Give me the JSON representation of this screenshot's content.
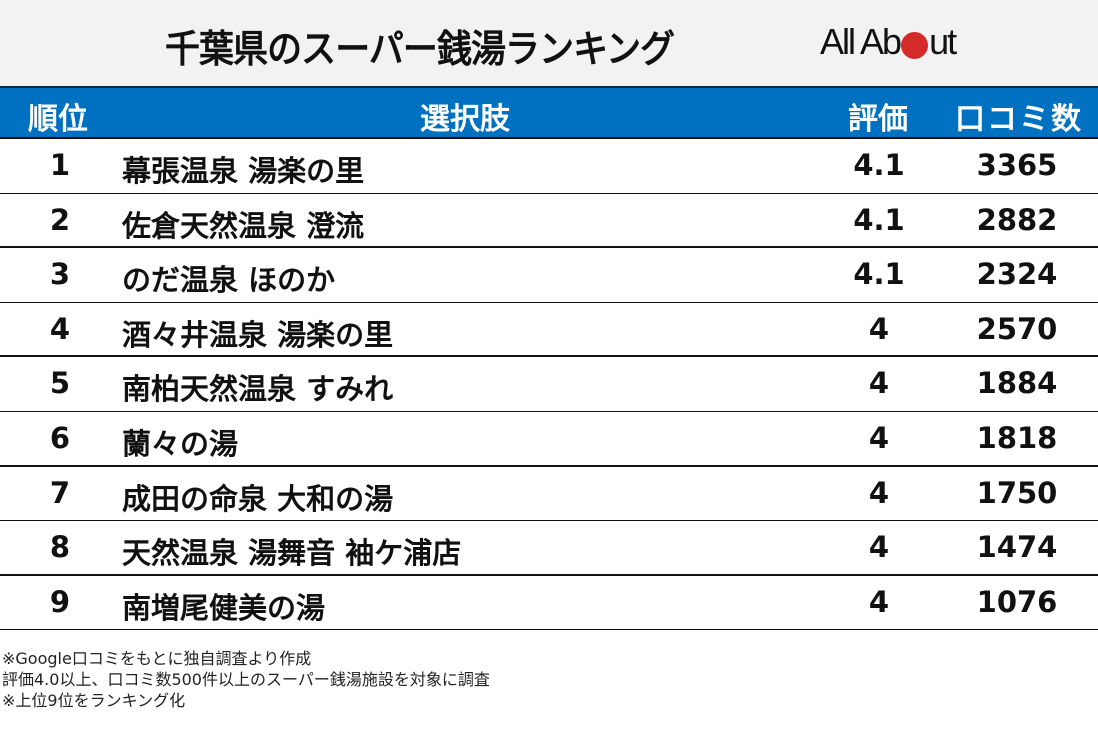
{
  "header": {
    "title": "千葉県のスーパー銭湯ランキング",
    "logo": {
      "text_left": "All Ab",
      "text_right": "ut",
      "dot_color": "#d52a2a"
    }
  },
  "table": {
    "header_bg": "#0070c0",
    "columns": [
      "順位",
      "選択肢",
      "評価",
      "口コミ数"
    ],
    "rows": [
      {
        "rank": "1",
        "name": "幕張温泉 湯楽の里",
        "rating": "4.1",
        "reviews": "3365"
      },
      {
        "rank": "2",
        "name": "佐倉天然温泉 澄流",
        "rating": "4.1",
        "reviews": "2882"
      },
      {
        "rank": "3",
        "name": "のだ温泉 ほのか",
        "rating": "4.1",
        "reviews": "2324"
      },
      {
        "rank": "4",
        "name": "酒々井温泉 湯楽の里",
        "rating": "4",
        "reviews": "2570"
      },
      {
        "rank": "5",
        "name": "南柏天然温泉 すみれ",
        "rating": "4",
        "reviews": "1884"
      },
      {
        "rank": "6",
        "name": "蘭々の湯",
        "rating": "4",
        "reviews": "1818"
      },
      {
        "rank": "7",
        "name": "成田の命泉 大和の湯",
        "rating": "4",
        "reviews": "1750"
      },
      {
        "rank": "8",
        "name": "天然温泉 湯舞音 袖ケ浦店",
        "rating": "4",
        "reviews": "1474"
      },
      {
        "rank": "9",
        "name": "南増尾健美の湯",
        "rating": "4",
        "reviews": "1076"
      }
    ]
  },
  "notes": [
    "※Google口コミをもとに独自調査より作成",
    "評価4.0以上、口コミ数500件以上のスーパー銭湯施設を対象に調査",
    "※上位9位をランキング化"
  ]
}
